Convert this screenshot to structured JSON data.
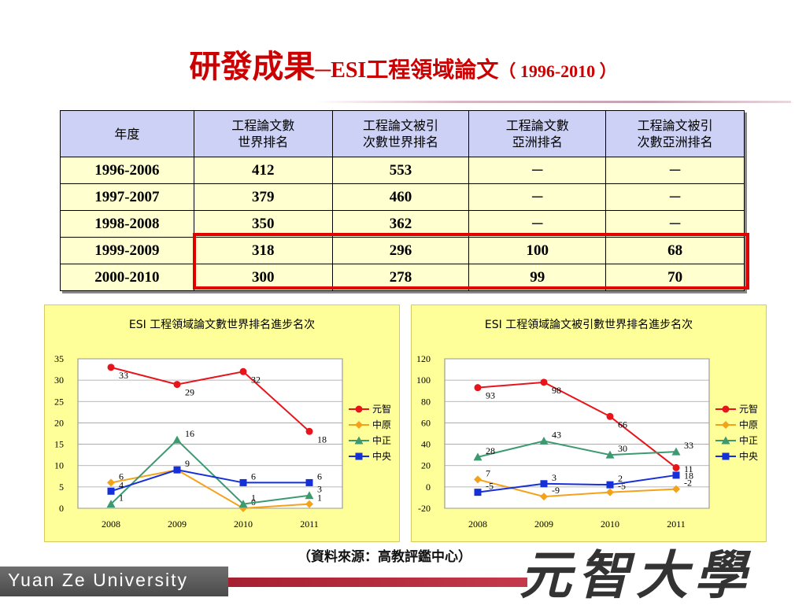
{
  "slide": {
    "title_main": "研發成果",
    "title_dash": "─",
    "title_sub": "ESI工程領域論文",
    "title_paren": "（ 1996-2010 ）",
    "source_note": "（資料來源：高教評鑑中心）"
  },
  "table": {
    "headers": [
      [
        "年度"
      ],
      [
        "工程論文數",
        "世界排名"
      ],
      [
        "工程論文被引",
        "次數世界排名"
      ],
      [
        "工程論文數",
        "亞洲排名"
      ],
      [
        "工程論文被引",
        "次數亞洲排名"
      ]
    ],
    "rows": [
      [
        "1996-2006",
        "412",
        "553",
        "─",
        "─"
      ],
      [
        "1997-2007",
        "379",
        "460",
        "─",
        "─"
      ],
      [
        "1998-2008",
        "350",
        "362",
        "─",
        "─"
      ],
      [
        "1999-2009",
        "318",
        "296",
        "100",
        "68"
      ],
      [
        "2000-2010",
        "300",
        "278",
        "99",
        "70"
      ]
    ],
    "highlighted_rows": [
      "1999-2009",
      "2000-2010"
    ],
    "highlight_color": "#e00000"
  },
  "chart_data": [
    {
      "type": "line",
      "title": "ESI 工程領域論文數世界排名進步名次",
      "x": [
        "2008",
        "2009",
        "2010",
        "2011"
      ],
      "ylim": [
        0,
        35
      ],
      "yticks": [
        0,
        5,
        10,
        15,
        20,
        25,
        30,
        35
      ],
      "grid": true,
      "legend": "right",
      "series": [
        {
          "name": "元智",
          "color": "#e8141c",
          "marker": "circle",
          "values": [
            33,
            29,
            32,
            18
          ],
          "labels": [
            "33",
            "29",
            "32",
            "18"
          ]
        },
        {
          "name": "中原",
          "color": "#f5a21b",
          "marker": "diamond",
          "values": [
            6,
            9,
            0,
            1
          ],
          "labels": [
            "6",
            "",
            "0",
            "1"
          ]
        },
        {
          "name": "中正",
          "color": "#3d9a70",
          "marker": "triangle",
          "values": [
            1,
            16,
            1,
            3
          ],
          "labels": [
            "1",
            "16",
            "1",
            "3"
          ]
        },
        {
          "name": "中央",
          "color": "#1530d8",
          "marker": "square",
          "values": [
            4,
            9,
            6,
            6
          ],
          "labels": [
            "4",
            "9",
            "6",
            "6"
          ]
        }
      ]
    },
    {
      "type": "line",
      "title": "ESI 工程領域論文被引數世界排名進步名次",
      "x": [
        "2008",
        "2009",
        "2010",
        "2011"
      ],
      "ylim": [
        -20,
        120
      ],
      "yticks": [
        -20,
        0,
        20,
        40,
        60,
        80,
        100,
        120
      ],
      "grid": true,
      "legend": "right",
      "series": [
        {
          "name": "元智",
          "color": "#e8141c",
          "marker": "circle",
          "values": [
            93,
            98,
            66,
            18
          ],
          "labels": [
            "93",
            "98",
            "66",
            "18"
          ]
        },
        {
          "name": "中原",
          "color": "#f5a21b",
          "marker": "diamond",
          "values": [
            7,
            -9,
            -5,
            -2
          ],
          "labels": [
            "7",
            "-9",
            "-5",
            "-2"
          ]
        },
        {
          "name": "中正",
          "color": "#3d9a70",
          "marker": "triangle",
          "values": [
            28,
            43,
            30,
            33
          ],
          "labels": [
            "28",
            "43",
            "30",
            "33"
          ]
        },
        {
          "name": "中央",
          "color": "#1530d8",
          "marker": "square",
          "values": [
            -5,
            3,
            2,
            11
          ],
          "labels": [
            "-5",
            "3",
            "2",
            "11"
          ]
        }
      ]
    }
  ],
  "footer": {
    "brand_text": "Yuan Ze University",
    "calligraphy_text": "元智大學"
  }
}
